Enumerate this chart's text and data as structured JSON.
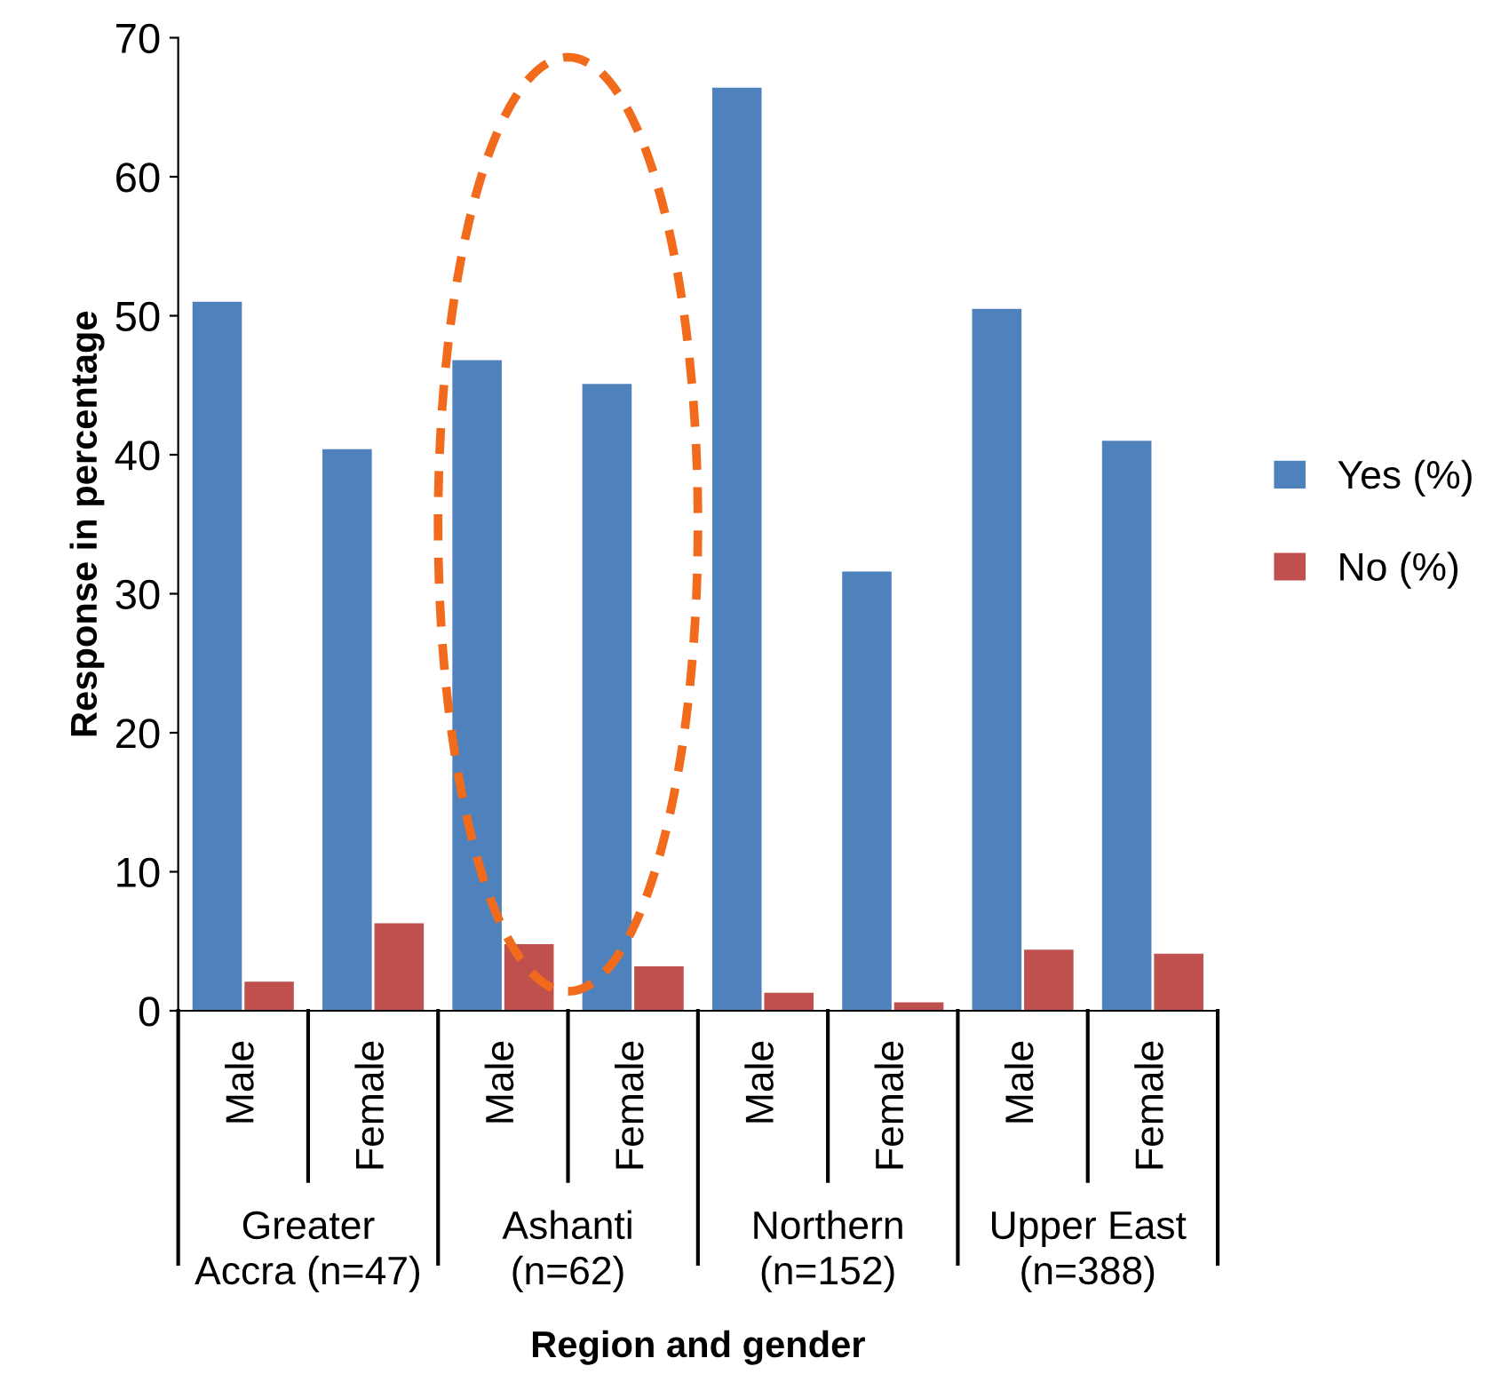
{
  "chart_data": {
    "type": "bar",
    "xlabel": "Region and gender",
    "ylabel": "Response in percentage",
    "categories": [
      "Male",
      "Female",
      "Male",
      "Female",
      "Male",
      "Female",
      "Male",
      "Female"
    ],
    "series": [
      {
        "name": "Yes (%)",
        "color": "#4f81bd",
        "values": [
          51.0,
          40.4,
          46.8,
          45.1,
          66.4,
          31.6,
          50.5,
          41.0
        ]
      },
      {
        "name": "No (%)",
        "color": "#c0504d",
        "values": [
          2.1,
          6.3,
          4.8,
          3.2,
          1.3,
          0.6,
          4.4,
          4.1
        ]
      }
    ],
    "annotations": [
      "Greater\nAccra (n=47)",
      "Ashanti\n(n=62)",
      "Northern\n(n=152)",
      "Upper East\n(n=388)"
    ],
    "ylim": [
      0,
      70
    ],
    "yticks": [
      0,
      10,
      20,
      30,
      40,
      50,
      60,
      70
    ],
    "grid": false,
    "legend": "right"
  }
}
